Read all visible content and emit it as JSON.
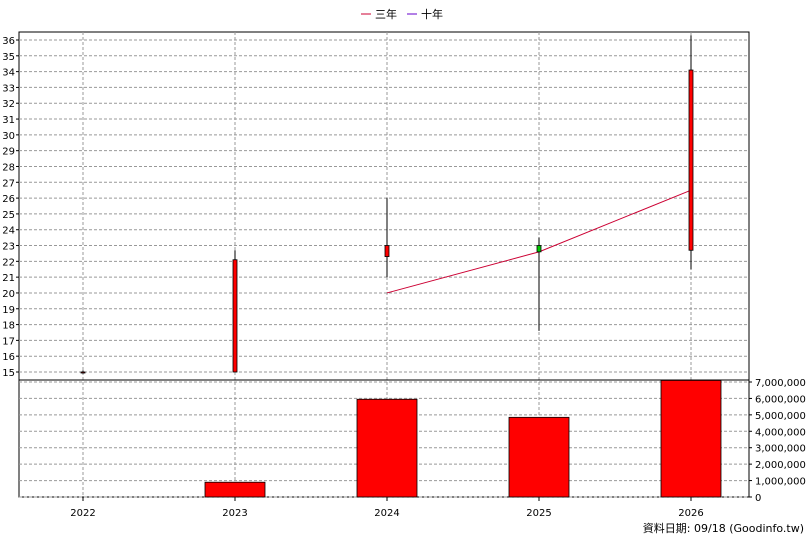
{
  "chart_data": {
    "type": "candlestick+bar",
    "legend": [
      {
        "name": "三年",
        "color": "#cc0033"
      },
      {
        "name": "十年",
        "color": "#6600cc"
      }
    ],
    "years": [
      "2022",
      "2023",
      "2024",
      "2025",
      "2026"
    ],
    "price_axis": {
      "min": 15,
      "max": 36,
      "ticks": [
        15,
        16,
        17,
        18,
        19,
        20,
        21,
        22,
        23,
        24,
        25,
        26,
        27,
        28,
        29,
        30,
        31,
        32,
        33,
        34,
        35,
        36
      ],
      "position": "left"
    },
    "candles": [
      {
        "year": "2022",
        "open": 15.0,
        "high": 15.1,
        "low": 14.9,
        "close": 15.0
      },
      {
        "year": "2023",
        "open": 15.0,
        "high": 22.7,
        "low": 15.0,
        "close": 22.1
      },
      {
        "year": "2024",
        "open": 22.3,
        "high": 26.0,
        "low": 21.0,
        "close": 23.0
      },
      {
        "year": "2025",
        "open": 23.0,
        "high": 23.5,
        "low": 17.6,
        "close": 22.6
      },
      {
        "year": "2026",
        "open": 22.7,
        "high": 36.3,
        "low": 21.5,
        "close": 34.1
      }
    ],
    "three_year_line": [
      {
        "year": "2024",
        "value": 20.0
      },
      {
        "year": "2025",
        "value": 22.6
      },
      {
        "year": "2026",
        "value": 26.5
      }
    ],
    "volume_axis": {
      "min": 0,
      "max": 7000000,
      "ticks": [
        "0",
        "1,000,000",
        "2,000,000",
        "3,000,000",
        "4,000,000",
        "5,000,000",
        "6,000,000",
        "7,000,000"
      ],
      "position": "right"
    },
    "volumes": [
      {
        "year": "2022",
        "value": 0
      },
      {
        "year": "2023",
        "value": 900000
      },
      {
        "year": "2024",
        "value": 5950000
      },
      {
        "year": "2025",
        "value": 4850000
      },
      {
        "year": "2026",
        "value": 7100000
      }
    ],
    "grid": true,
    "up_color": "#ff0000",
    "down_color": "#00cc00",
    "volume_color": "#ff0000"
  },
  "footer": "資料日期: 09/18  (Goodinfo.tw)"
}
